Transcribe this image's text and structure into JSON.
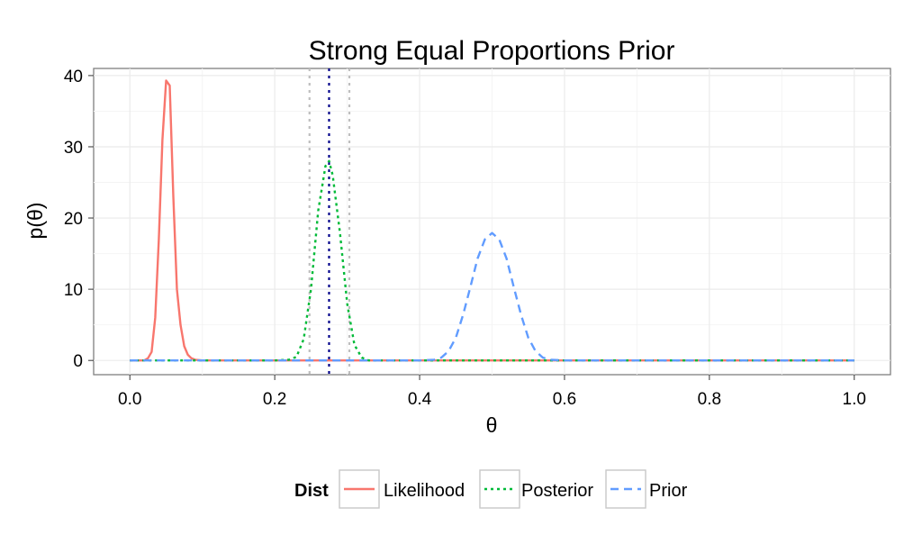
{
  "chart_data": {
    "type": "line",
    "title": "Strong Equal Proportions Prior",
    "xlabel": "θ",
    "ylabel": "p(θ)",
    "xlim": [
      -0.05,
      1.05
    ],
    "ylim": [
      -2,
      41
    ],
    "x_ticks": [
      "0.0",
      "0.2",
      "0.4",
      "0.6",
      "0.8",
      "1.0"
    ],
    "y_ticks": [
      "0",
      "10",
      "20",
      "30",
      "40"
    ],
    "grid": true,
    "legend": {
      "title": "Dist",
      "position": "bottom"
    },
    "series": [
      {
        "name": "Likelihood",
        "color": "#F8766D",
        "dash": "solid",
        "x": [
          0.0,
          0.02,
          0.025,
          0.03,
          0.035,
          0.04,
          0.045,
          0.05,
          0.055,
          0.06,
          0.065,
          0.07,
          0.075,
          0.08,
          0.085,
          0.09,
          0.1,
          0.2,
          0.4,
          0.6,
          0.8,
          1.0
        ],
        "y": [
          0,
          0,
          0.3,
          1.2,
          6,
          17,
          31,
          39.3,
          38.6,
          23,
          10,
          5,
          2,
          0.8,
          0.3,
          0.1,
          0,
          0,
          0,
          0,
          0,
          0
        ]
      },
      {
        "name": "Posterior",
        "color": "#00BA38",
        "dash": "dotted",
        "x": [
          0.0,
          0.2,
          0.22,
          0.23,
          0.24,
          0.25,
          0.26,
          0.27,
          0.275,
          0.28,
          0.29,
          0.3,
          0.31,
          0.32,
          0.33,
          0.4,
          0.6,
          0.8,
          1.0
        ],
        "y": [
          0,
          0,
          0.1,
          0.5,
          3,
          10,
          21,
          27.3,
          28,
          26,
          18,
          8,
          2.2,
          0.4,
          0,
          0,
          0,
          0,
          0
        ]
      },
      {
        "name": "Prior",
        "color": "#619CFF",
        "dash": "dashed",
        "x": [
          0.0,
          0.4,
          0.42,
          0.43,
          0.44,
          0.45,
          0.46,
          0.47,
          0.48,
          0.49,
          0.5,
          0.51,
          0.52,
          0.53,
          0.54,
          0.55,
          0.56,
          0.57,
          0.58,
          0.6,
          0.8,
          1.0
        ],
        "y": [
          0,
          0,
          0.1,
          0.4,
          1.3,
          3.2,
          6.4,
          10.3,
          14.3,
          17,
          17.9,
          17,
          14.3,
          10.3,
          6.4,
          3.2,
          1.3,
          0.4,
          0.1,
          0,
          0,
          0
        ]
      }
    ],
    "vlines": [
      {
        "x": 0.275,
        "color": "#00008B",
        "dash": "dotted"
      },
      {
        "x": 0.248,
        "color": "#BEBEBE",
        "dash": "dotted"
      },
      {
        "x": 0.303,
        "color": "#BEBEBE",
        "dash": "dotted"
      }
    ]
  }
}
